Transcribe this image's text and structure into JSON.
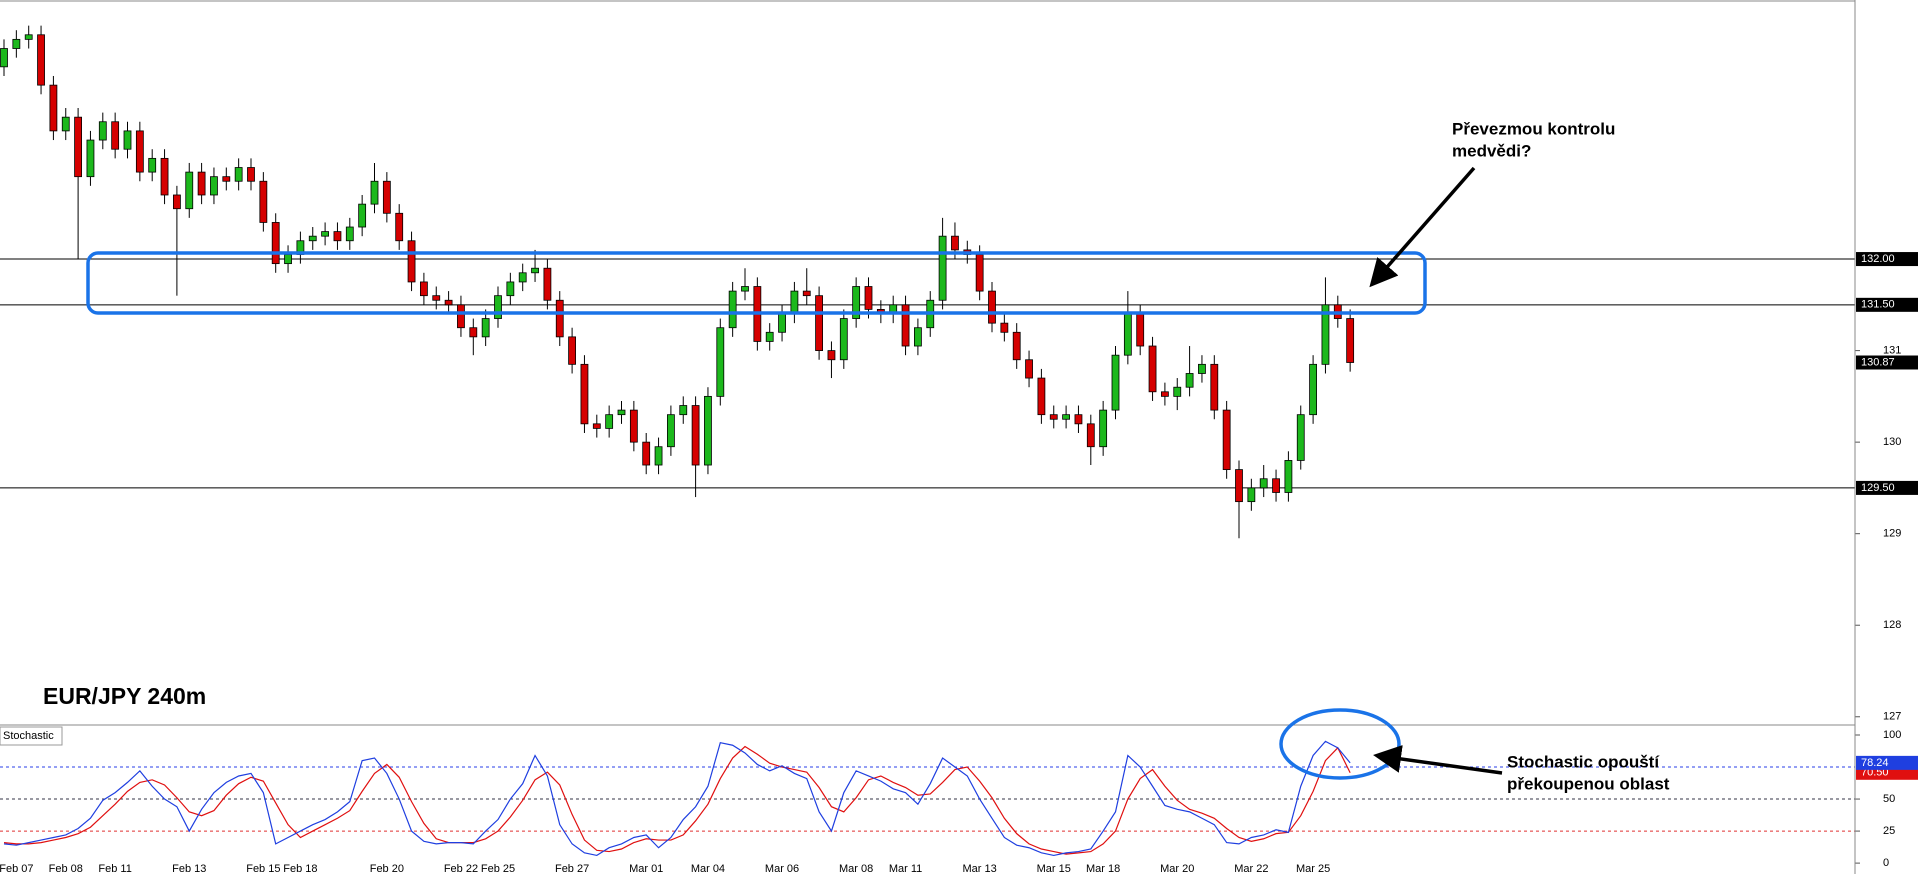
{
  "chart_data": [
    {
      "type": "candlestick",
      "title": "EUR/JPY 240m",
      "categories": [
        null,
        "Feb 07",
        null,
        null,
        null,
        "Feb 08",
        null,
        null,
        null,
        "Feb 11",
        null,
        null,
        null,
        null,
        null,
        "Feb 13",
        null,
        null,
        null,
        null,
        null,
        "Feb 15",
        null,
        null,
        "Feb 18",
        null,
        null,
        null,
        null,
        null,
        null,
        "Feb 20",
        null,
        null,
        null,
        null,
        null,
        "Feb 22",
        null,
        null,
        "Feb 25",
        null,
        null,
        null,
        null,
        null,
        "Feb 27",
        null,
        null,
        null,
        null,
        null,
        "Mar 01",
        null,
        null,
        null,
        null,
        "Mar 04",
        null,
        null,
        null,
        null,
        null,
        "Mar 06",
        null,
        null,
        null,
        null,
        null,
        "Mar 08",
        null,
        null,
        null,
        "Mar 11",
        null,
        null,
        null,
        null,
        null,
        "Mar 13",
        null,
        null,
        null,
        null,
        null,
        "Mar 15",
        null,
        null,
        null,
        "Mar 18",
        null,
        null,
        null,
        null,
        null,
        "Mar 20",
        null,
        null,
        null,
        null,
        null,
        "Mar 22",
        null,
        null,
        null,
        null,
        "Mar 25",
        null,
        null,
        null
      ],
      "open": [
        134.1,
        134.3,
        134.4,
        134.45,
        133.9,
        133.4,
        133.55,
        132.9,
        133.3,
        133.5,
        133.2,
        133.4,
        132.95,
        133.1,
        132.7,
        132.55,
        132.95,
        132.7,
        132.9,
        132.85,
        133.0,
        132.85,
        132.4,
        131.95,
        132.05,
        132.2,
        132.25,
        132.3,
        132.2,
        132.35,
        132.6,
        132.85,
        132.5,
        132.2,
        131.75,
        131.6,
        131.55,
        131.5,
        131.25,
        131.15,
        131.35,
        131.6,
        131.75,
        131.85,
        131.9,
        131.55,
        131.15,
        130.85,
        130.2,
        130.15,
        130.3,
        130.35,
        130.0,
        129.75,
        129.95,
        130.3,
        130.4,
        129.75,
        130.5,
        131.25,
        131.65,
        131.7,
        131.1,
        131.2,
        131.4,
        131.65,
        131.6,
        131.0,
        130.9,
        131.35,
        131.7,
        131.45,
        131.4,
        131.5,
        131.05,
        131.25,
        131.55,
        132.25,
        132.1,
        132.05,
        131.65,
        131.3,
        131.2,
        130.9,
        130.7,
        130.3,
        130.25,
        130.3,
        130.2,
        129.95,
        130.35,
        130.95,
        131.4,
        131.05,
        130.55,
        130.5,
        130.6,
        130.75,
        130.85,
        130.35,
        129.7,
        129.35,
        129.5,
        129.6,
        129.45,
        129.8,
        130.3,
        130.85,
        131.5,
        131.35
      ],
      "high": [
        134.4,
        134.5,
        134.55,
        134.55,
        134.0,
        133.65,
        133.65,
        133.4,
        133.6,
        133.6,
        133.5,
        133.5,
        133.2,
        133.2,
        132.8,
        133.05,
        133.05,
        133.0,
        133.0,
        133.1,
        133.1,
        132.95,
        132.5,
        132.15,
        132.3,
        132.35,
        132.4,
        132.4,
        132.45,
        132.7,
        133.05,
        132.95,
        132.6,
        132.3,
        131.85,
        131.7,
        131.65,
        131.6,
        131.35,
        131.45,
        131.7,
        131.85,
        131.95,
        132.1,
        132.0,
        131.65,
        131.25,
        130.95,
        130.3,
        130.4,
        130.45,
        130.45,
        130.1,
        130.05,
        130.4,
        130.5,
        130.5,
        130.6,
        131.35,
        131.75,
        131.9,
        131.8,
        131.3,
        131.5,
        131.75,
        131.9,
        131.7,
        131.1,
        131.45,
        131.8,
        131.8,
        131.55,
        131.6,
        131.6,
        131.35,
        131.65,
        132.45,
        132.4,
        132.2,
        132.15,
        131.75,
        131.4,
        131.3,
        131.0,
        130.8,
        130.4,
        130.4,
        130.4,
        130.3,
        130.45,
        131.05,
        131.65,
        131.5,
        131.15,
        130.65,
        130.7,
        131.05,
        130.95,
        130.95,
        130.45,
        129.8,
        129.6,
        129.75,
        129.7,
        129.9,
        130.4,
        130.95,
        131.8,
        131.6,
        131.45
      ],
      "low": [
        134.0,
        134.2,
        134.3,
        133.8,
        133.3,
        133.3,
        132.0,
        132.8,
        133.2,
        133.1,
        133.1,
        132.85,
        132.85,
        132.6,
        131.6,
        132.45,
        132.6,
        132.6,
        132.75,
        132.75,
        132.75,
        132.3,
        131.85,
        131.85,
        131.95,
        132.1,
        132.15,
        132.1,
        132.1,
        132.25,
        132.5,
        132.4,
        132.1,
        131.65,
        131.5,
        131.45,
        131.4,
        131.15,
        130.95,
        131.05,
        131.25,
        131.5,
        131.65,
        131.75,
        131.45,
        131.05,
        130.75,
        130.1,
        130.05,
        130.05,
        130.2,
        129.9,
        129.65,
        129.65,
        129.85,
        130.2,
        129.4,
        129.65,
        130.4,
        131.15,
        131.55,
        131.0,
        131.0,
        131.1,
        131.3,
        131.5,
        130.9,
        130.7,
        130.8,
        131.25,
        131.35,
        131.3,
        131.3,
        130.95,
        130.95,
        131.15,
        131.45,
        132.0,
        131.95,
        131.55,
        131.2,
        131.1,
        130.8,
        130.6,
        130.2,
        130.15,
        130.15,
        130.1,
        129.75,
        129.85,
        130.25,
        130.85,
        130.95,
        130.45,
        130.4,
        130.35,
        130.5,
        130.65,
        130.25,
        129.6,
        128.95,
        129.25,
        129.4,
        129.35,
        129.35,
        129.7,
        130.2,
        130.75,
        131.25,
        130.77
      ],
      "close": [
        134.3,
        134.4,
        134.45,
        133.9,
        133.4,
        133.55,
        132.9,
        133.3,
        133.5,
        133.2,
        133.4,
        132.95,
        133.1,
        132.7,
        132.55,
        132.95,
        132.7,
        132.9,
        132.85,
        133.0,
        132.85,
        132.4,
        131.95,
        132.05,
        132.2,
        132.25,
        132.3,
        132.2,
        132.35,
        132.6,
        132.85,
        132.5,
        132.2,
        131.75,
        131.6,
        131.55,
        131.5,
        131.25,
        131.15,
        131.35,
        131.6,
        131.75,
        131.85,
        131.9,
        131.55,
        131.15,
        130.85,
        130.2,
        130.15,
        130.3,
        130.35,
        130.0,
        129.75,
        129.95,
        130.3,
        130.4,
        129.75,
        130.5,
        131.25,
        131.65,
        131.7,
        131.1,
        131.2,
        131.4,
        131.65,
        131.6,
        131.0,
        130.9,
        131.35,
        131.7,
        131.45,
        131.4,
        131.5,
        131.05,
        131.25,
        131.55,
        132.25,
        132.1,
        132.05,
        131.65,
        131.3,
        131.2,
        130.9,
        130.7,
        130.3,
        130.25,
        130.3,
        130.2,
        129.95,
        130.35,
        130.95,
        131.4,
        131.05,
        130.55,
        130.5,
        130.6,
        130.75,
        130.85,
        130.35,
        129.7,
        129.35,
        129.5,
        129.6,
        129.45,
        129.8,
        130.3,
        130.85,
        131.5,
        131.35,
        130.87
      ],
      "up_color": "#1cb81c",
      "down_color": "#d50000",
      "ylim": [
        126.91,
        134.83
      ],
      "yticks": [
        127,
        128,
        129,
        130,
        131
      ],
      "levels": [
        {
          "value": 132,
          "label": "132.00"
        },
        {
          "value": 131.5,
          "label": "131.50"
        },
        {
          "value": 129.5,
          "label": "129.50"
        }
      ],
      "annotation": [
        "Převezmou kontrolu",
        "medvědi?"
      ]
    },
    {
      "type": "line",
      "title": "Stochastic",
      "series": [
        {
          "color": "#1f3fe0",
          "values": [
            15,
            14,
            16,
            18,
            20,
            22,
            27,
            35,
            49,
            55,
            63,
            72,
            60,
            50,
            44,
            25,
            42,
            55,
            63,
            68,
            70,
            55,
            15,
            20,
            25,
            30,
            34,
            40,
            48,
            80,
            82,
            70,
            50,
            25,
            17,
            15,
            16,
            16,
            15,
            25,
            34,
            50,
            62,
            84,
            68,
            30,
            15,
            8,
            6,
            12,
            15,
            20,
            22,
            12,
            20,
            34,
            44,
            60,
            94,
            92,
            86,
            77,
            72,
            76,
            70,
            66,
            40,
            25,
            55,
            72,
            68,
            64,
            58,
            55,
            46,
            62,
            82,
            75,
            68,
            50,
            35,
            20,
            14,
            12,
            8,
            6,
            8,
            9,
            11,
            25,
            40,
            84,
            75,
            60,
            45,
            42,
            40,
            35,
            30,
            16,
            15,
            20,
            22,
            26,
            24,
            60,
            84,
            95,
            90,
            78.24
          ]
        },
        {
          "color": "#e01010",
          "last_value_label": "70.50",
          "values": [
            16,
            15,
            15,
            16,
            18,
            20,
            23,
            28,
            37,
            46,
            56,
            63,
            65,
            61,
            51,
            40,
            37,
            41,
            53,
            62,
            67,
            64,
            47,
            30,
            20,
            25,
            30,
            35,
            41,
            56,
            70,
            77,
            67,
            48,
            31,
            19,
            16,
            16,
            16,
            19,
            25,
            36,
            49,
            65,
            71,
            61,
            38,
            18,
            10,
            9,
            11,
            16,
            19,
            18,
            18,
            22,
            33,
            46,
            66,
            82,
            91,
            85,
            78,
            75,
            73,
            71,
            59,
            44,
            40,
            51,
            65,
            68,
            63,
            59,
            53,
            54,
            63,
            73,
            75,
            64,
            51,
            35,
            23,
            15,
            11,
            9,
            7,
            8,
            9,
            15,
            25,
            50,
            66,
            73,
            60,
            49,
            42,
            39,
            35,
            27,
            20,
            17,
            19,
            23,
            24,
            37,
            56,
            80,
            90,
            70.5
          ]
        }
      ],
      "ylim": [
        -8.5,
        107.8
      ],
      "yticks": [
        0,
        25,
        50,
        100
      ],
      "levels": [
        75,
        50,
        25
      ],
      "level_colors": [
        "#2a3fe8",
        "#334",
        "#e03030"
      ],
      "annotation": [
        "Stochastic opouští",
        "překoupenou oblast"
      ]
    }
  ]
}
